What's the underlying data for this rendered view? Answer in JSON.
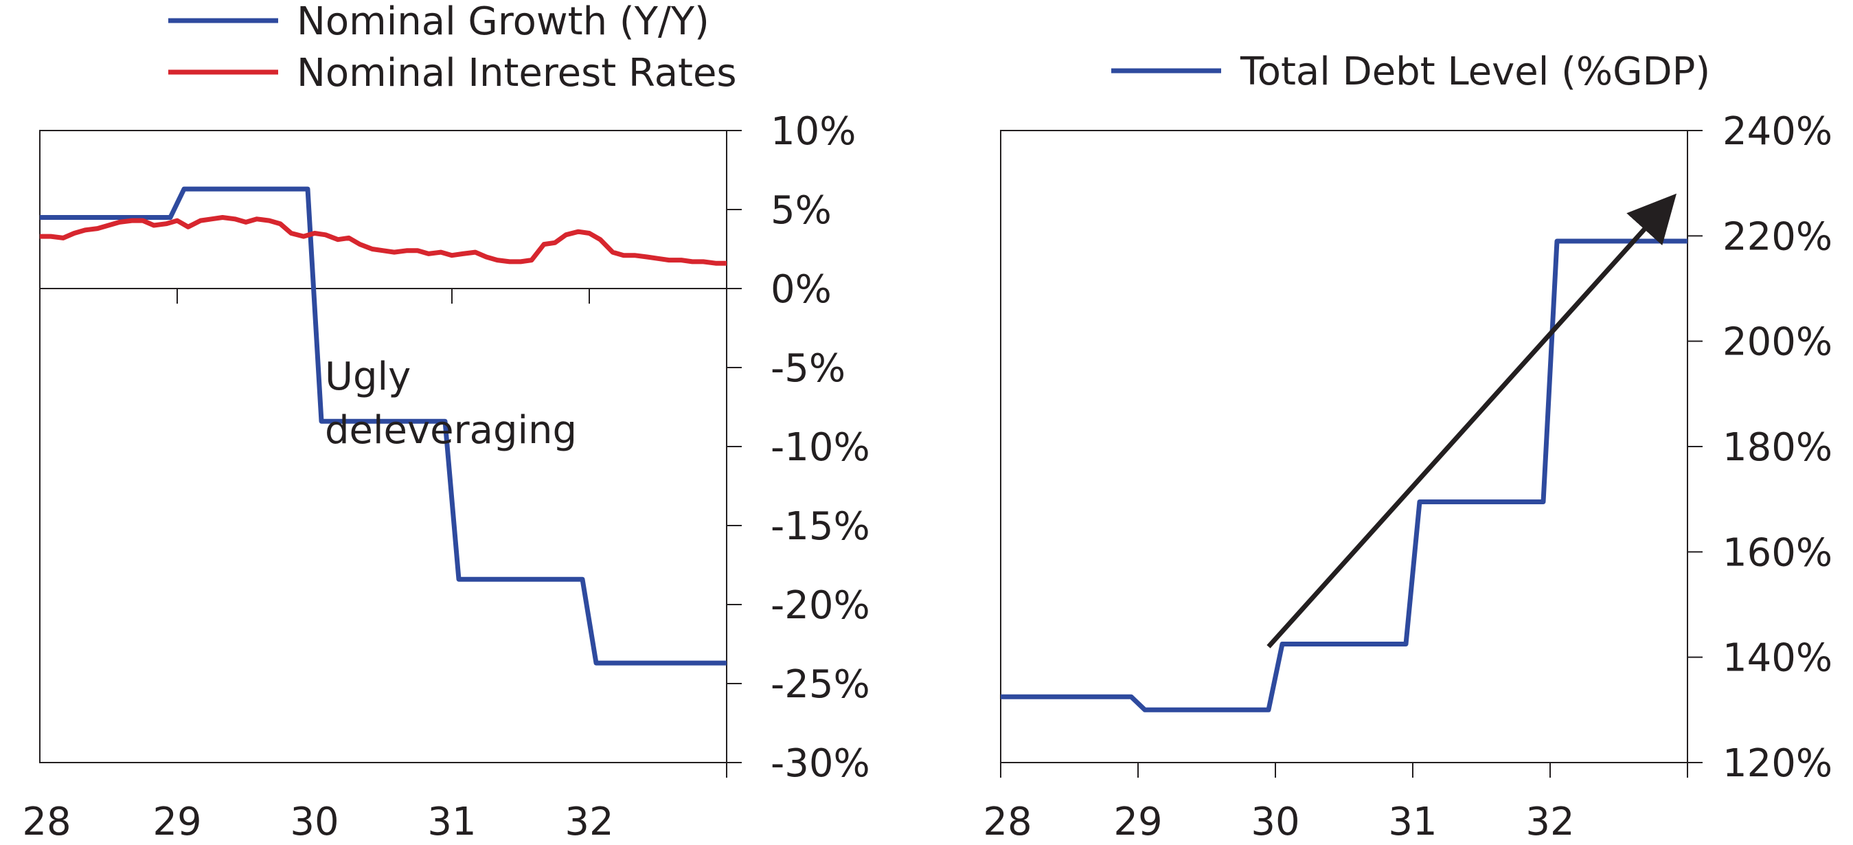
{
  "chart_data": [
    {
      "type": "line",
      "title": "",
      "xlabel": "",
      "ylabel": "",
      "categories": [
        "28",
        "29",
        "30",
        "31",
        "32"
      ],
      "xlim": [
        1928,
        1933
      ],
      "ylim": [
        -30,
        10
      ],
      "y_ticks": [
        "10%",
        "5%",
        "0%",
        "-5%",
        "-10%",
        "-15%",
        "-20%",
        "-25%",
        "-30%"
      ],
      "y_tick_values": [
        10,
        5,
        0,
        -5,
        -10,
        -15,
        -20,
        -25,
        -30
      ],
      "y_axis_side": "right",
      "legend_position": "top",
      "series": [
        {
          "name": "Nominal Growth (Y/Y)",
          "color": "#2e4a9e",
          "points": [
            [
              1928.0,
              4.5
            ],
            [
              1928.95,
              4.5
            ],
            [
              1929.05,
              6.3
            ],
            [
              1929.95,
              6.3
            ],
            [
              1930.05,
              -8.4
            ],
            [
              1930.95,
              -8.4
            ],
            [
              1931.05,
              -18.4
            ],
            [
              1931.95,
              -18.4
            ],
            [
              1932.05,
              -23.7
            ],
            [
              1933.0,
              -23.7
            ]
          ]
        },
        {
          "name": "Nominal Interest Rates",
          "color": "#d7262e",
          "points": [
            [
              1928.0,
              3.3
            ],
            [
              1928.08,
              3.3
            ],
            [
              1928.17,
              3.2
            ],
            [
              1928.25,
              3.5
            ],
            [
              1928.33,
              3.7
            ],
            [
              1928.42,
              3.8
            ],
            [
              1928.5,
              4.0
            ],
            [
              1928.58,
              4.2
            ],
            [
              1928.67,
              4.3
            ],
            [
              1928.75,
              4.3
            ],
            [
              1928.83,
              4.0
            ],
            [
              1928.92,
              4.1
            ],
            [
              1929.0,
              4.3
            ],
            [
              1929.08,
              3.9
            ],
            [
              1929.17,
              4.3
            ],
            [
              1929.25,
              4.4
            ],
            [
              1929.33,
              4.5
            ],
            [
              1929.42,
              4.4
            ],
            [
              1929.5,
              4.2
            ],
            [
              1929.58,
              4.4
            ],
            [
              1929.67,
              4.3
            ],
            [
              1929.75,
              4.1
            ],
            [
              1929.83,
              3.5
            ],
            [
              1929.92,
              3.3
            ],
            [
              1930.0,
              3.5
            ],
            [
              1930.08,
              3.4
            ],
            [
              1930.17,
              3.1
            ],
            [
              1930.25,
              3.2
            ],
            [
              1930.33,
              2.8
            ],
            [
              1930.42,
              2.5
            ],
            [
              1930.5,
              2.4
            ],
            [
              1930.58,
              2.3
            ],
            [
              1930.67,
              2.4
            ],
            [
              1930.75,
              2.4
            ],
            [
              1930.83,
              2.2
            ],
            [
              1930.92,
              2.3
            ],
            [
              1931.0,
              2.1
            ],
            [
              1931.08,
              2.2
            ],
            [
              1931.17,
              2.3
            ],
            [
              1931.25,
              2.0
            ],
            [
              1931.33,
              1.8
            ],
            [
              1931.42,
              1.7
            ],
            [
              1931.5,
              1.7
            ],
            [
              1931.58,
              1.8
            ],
            [
              1931.67,
              2.8
            ],
            [
              1931.75,
              2.9
            ],
            [
              1931.83,
              3.4
            ],
            [
              1931.92,
              3.6
            ],
            [
              1932.0,
              3.5
            ],
            [
              1932.08,
              3.1
            ],
            [
              1932.17,
              2.3
            ],
            [
              1932.25,
              2.1
            ],
            [
              1932.33,
              2.1
            ],
            [
              1932.42,
              2.0
            ],
            [
              1932.5,
              1.9
            ],
            [
              1932.58,
              1.8
            ],
            [
              1932.67,
              1.8
            ],
            [
              1932.75,
              1.7
            ],
            [
              1932.83,
              1.7
            ],
            [
              1932.92,
              1.6
            ],
            [
              1933.0,
              1.6
            ]
          ]
        }
      ],
      "annotations": [
        {
          "text_lines": [
            "Ugly",
            "deleveraging"
          ],
          "x": 1930.05,
          "y": -4
        }
      ]
    },
    {
      "type": "line",
      "title": "",
      "xlabel": "",
      "ylabel": "",
      "categories": [
        "28",
        "29",
        "30",
        "31",
        "32"
      ],
      "xlim": [
        1928,
        1933
      ],
      "ylim": [
        120,
        240
      ],
      "y_ticks": [
        "240%",
        "220%",
        "200%",
        "180%",
        "160%",
        "140%",
        "120%"
      ],
      "y_tick_values": [
        240,
        220,
        200,
        180,
        160,
        140,
        120
      ],
      "y_axis_side": "right",
      "legend_position": "top",
      "series": [
        {
          "name": "Total Debt Level (%GDP)",
          "color": "#2e4a9e",
          "points": [
            [
              1928.0,
              132.5
            ],
            [
              1928.95,
              132.5
            ],
            [
              1929.05,
              130.0
            ],
            [
              1929.95,
              130.0
            ],
            [
              1930.05,
              142.5
            ],
            [
              1930.95,
              142.5
            ],
            [
              1931.05,
              169.5
            ],
            [
              1931.95,
              169.5
            ],
            [
              1932.05,
              219.0
            ],
            [
              1933.0,
              219.0
            ]
          ]
        }
      ],
      "arrows": [
        {
          "from": [
            1929.95,
            142.0
          ],
          "to": [
            1932.85,
            226.0
          ],
          "color": "#231f20"
        }
      ]
    }
  ]
}
